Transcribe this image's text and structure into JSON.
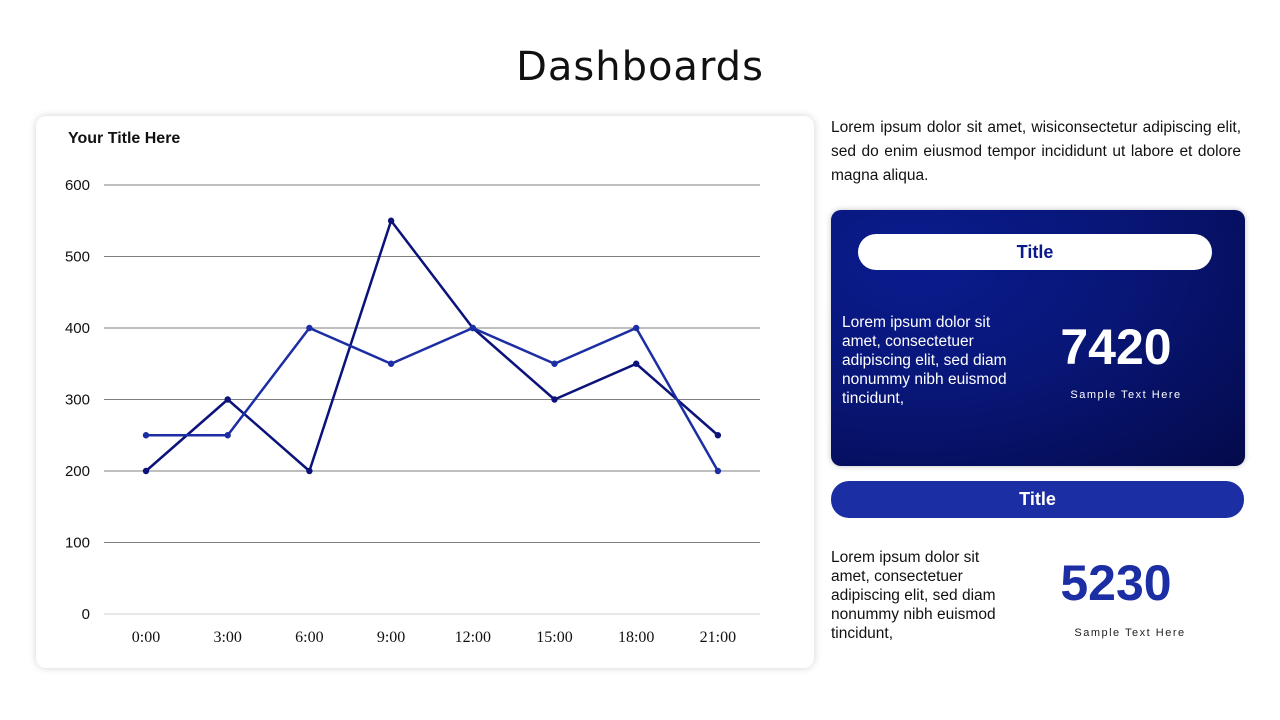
{
  "page": {
    "title": "Dashboards"
  },
  "chart_data": {
    "type": "line",
    "title": "Your Title Here",
    "categories": [
      "0:00",
      "3:00",
      "6:00",
      "9:00",
      "12:00",
      "15:00",
      "18:00",
      "21:00"
    ],
    "series": [
      {
        "values": [
          200,
          300,
          200,
          550,
          400,
          300,
          350,
          250
        ],
        "color": "#0b127a"
      },
      {
        "values": [
          250,
          250,
          400,
          350,
          400,
          350,
          400,
          200
        ],
        "color": "#1c2ea3"
      }
    ],
    "yticks": [
      0,
      100,
      200,
      300,
      400,
      500,
      600
    ],
    "ylim": [
      0,
      600
    ],
    "grid": true,
    "legend": false
  },
  "intro": {
    "text": "Lorem ipsum dolor sit amet, wisiconsectetur adipiscing elit, sed do enim eiusmod tempor incididunt ut labore et dolore magna aliqua."
  },
  "kpi1": {
    "title": "Title",
    "text": "Lorem ipsum dolor sit amet, consectetuer adipiscing elit, sed diam nonummy nibh euismod tincidunt,",
    "value": "7420",
    "caption": "Sample Text Here"
  },
  "kpi2": {
    "title": "Title",
    "text": "Lorem ipsum dolor sit amet, consectetuer adipiscing elit, sed diam nonummy nibh euismod tincidunt,",
    "value": "5230",
    "caption": "Sample Text Here"
  },
  "colors": {
    "dark_navy": "#0b127a",
    "royal_blue": "#1c2ea3",
    "card_gradient_end": "#040a4a"
  }
}
